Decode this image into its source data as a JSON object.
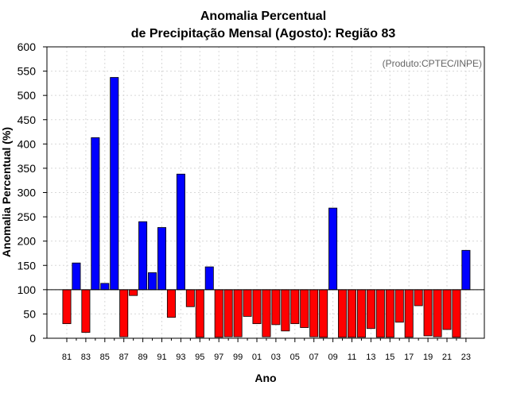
{
  "chart_data": {
    "type": "bar",
    "title_line1": "Anomalia Percentual",
    "title_line2": "de Precipitação Mensal (Agosto): Região 83",
    "xlabel": "Ano",
    "ylabel": "Anomalia Percentual (%)",
    "credit": "(Produto:CPTEC/INPE)",
    "ylim": [
      0,
      600
    ],
    "yticks": [
      "0",
      "50",
      "100",
      "150",
      "200",
      "250",
      "300",
      "350",
      "400",
      "450",
      "500",
      "550",
      "600"
    ],
    "baseline": 100,
    "xtick_labels": [
      "81",
      "83",
      "85",
      "87",
      "89",
      "91",
      "93",
      "95",
      "97",
      "99",
      "01",
      "03",
      "05",
      "07",
      "09",
      "11",
      "13",
      "15",
      "17",
      "19",
      "21",
      "23"
    ],
    "categories": [
      "1981",
      "1982",
      "1983",
      "1984",
      "1985",
      "1986",
      "1987",
      "1988",
      "1989",
      "1990",
      "1991",
      "1992",
      "1993",
      "1994",
      "1995",
      "1996",
      "1997",
      "1998",
      "1999",
      "2000",
      "2001",
      "2002",
      "2003",
      "2004",
      "2005",
      "2006",
      "2007",
      "2008",
      "2009",
      "2010",
      "2011",
      "2012",
      "2013",
      "2014",
      "2015",
      "2016",
      "2017",
      "2018",
      "2019",
      "2020",
      "2021",
      "2022",
      "2023"
    ],
    "values": [
      30,
      155,
      12,
      413,
      113,
      537,
      3,
      88,
      240,
      135,
      228,
      43,
      338,
      65,
      2,
      147,
      2,
      3,
      3,
      45,
      30,
      3,
      28,
      15,
      30,
      22,
      3,
      2,
      268,
      2,
      2,
      2,
      20,
      2,
      2,
      33,
      2,
      67,
      5,
      3,
      18,
      2,
      181
    ],
    "colors": {
      "above": "#0000ff",
      "below": "#ff0000",
      "grid": "#d8d8d8"
    }
  }
}
